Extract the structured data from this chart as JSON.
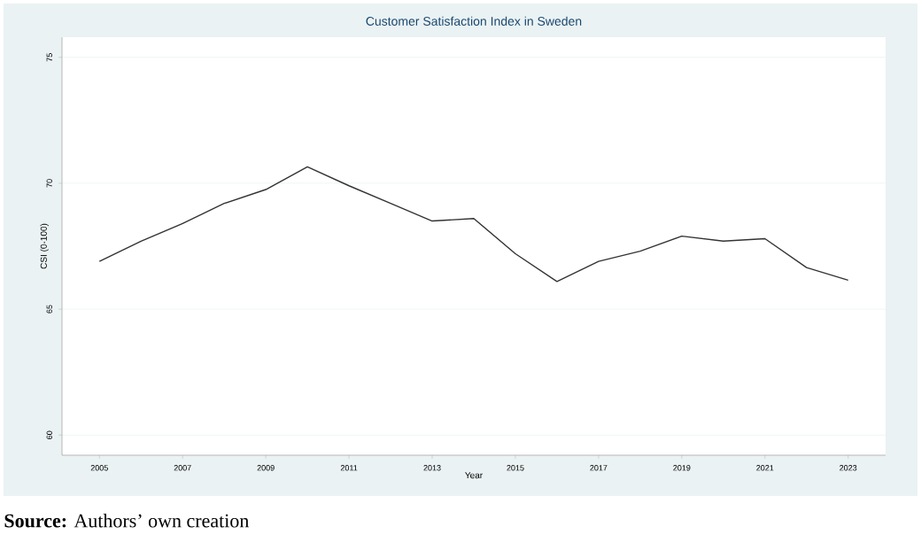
{
  "chart_data": {
    "type": "line",
    "title": "Customer Satisfaction Index in Sweden",
    "xlabel": "Year",
    "ylabel": "CSI (0-100)",
    "x": [
      2005,
      2006,
      2007,
      2008,
      2009,
      2010,
      2011,
      2012,
      2013,
      2014,
      2015,
      2016,
      2017,
      2018,
      2019,
      2020,
      2021,
      2022,
      2023
    ],
    "series": [
      {
        "color": "#333333",
        "values": [
          66.9,
          67.7,
          68.4,
          69.2,
          69.75,
          70.65,
          69.9,
          69.2,
          68.5,
          68.6,
          67.2,
          66.1,
          66.9,
          67.3,
          67.9,
          67.7,
          67.8,
          66.65,
          66.15
        ]
      }
    ],
    "xlim": [
      2004.1,
      2023.9
    ],
    "ylim": [
      59.2,
      75.8
    ],
    "xticks": [
      2005,
      2007,
      2009,
      2011,
      2013,
      2015,
      2017,
      2019,
      2021,
      2023
    ],
    "yticks": [
      60,
      65,
      70,
      75
    ],
    "grid": "y",
    "marker": "none",
    "line_style": "solid",
    "annotations": [
      "**Source:** Authors’ own creation"
    ]
  }
}
